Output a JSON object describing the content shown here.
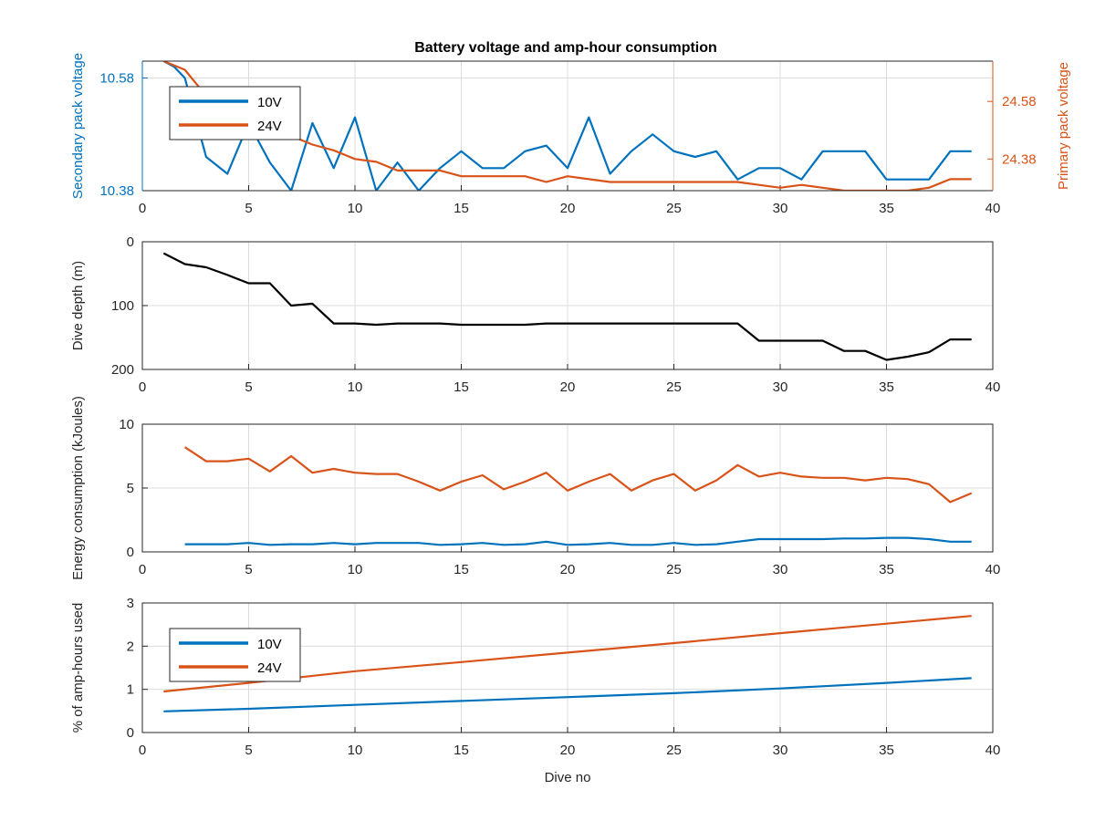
{
  "figure_title": "Battery voltage and amp-hour consumption",
  "colors": {
    "blue": "#0072BD",
    "orange": "#D95319",
    "black": "#000000",
    "axis": "#262626",
    "grid": "#dcdcdc"
  },
  "chart_data": [
    {
      "id": "voltage",
      "type": "line",
      "title": "Battery voltage and amp-hour consumption",
      "xlabel": "",
      "ylabel_left": "Secondary pack voltage",
      "ylabel_right": "Primary pack voltage",
      "xlim": [
        0,
        40
      ],
      "ylim_left": [
        10.38,
        10.61
      ],
      "ylim_right": [
        24.27,
        24.72
      ],
      "xticks": [
        0,
        5,
        10,
        15,
        20,
        25,
        30,
        35,
        40
      ],
      "xtick_labels": [
        "0",
        "5",
        "10",
        "15",
        "20",
        "25",
        "30",
        "35",
        "40"
      ],
      "yticks_left": [
        10.38,
        10.58
      ],
      "ytick_labels_left": [
        "10.38",
        "10.58"
      ],
      "yticks_right": [
        24.38,
        24.58
      ],
      "ytick_labels_right": [
        "24.38",
        "24.58"
      ],
      "grid": true,
      "legend": "top-left",
      "series": [
        {
          "name": "10V",
          "axis": "left",
          "color": "#0072BD",
          "x": [
            1,
            1.5,
            2,
            3,
            4,
            5,
            6,
            7,
            8,
            9,
            10,
            11,
            12,
            13,
            14,
            15,
            16,
            17,
            18,
            19,
            20,
            21,
            22,
            23,
            24,
            25,
            26,
            27,
            28,
            29,
            30,
            31,
            32,
            33,
            34,
            35,
            36,
            37,
            38,
            39
          ],
          "y": [
            10.61,
            10.6,
            10.58,
            10.44,
            10.41,
            10.5,
            10.43,
            10.38,
            10.5,
            10.42,
            10.51,
            10.38,
            10.43,
            10.38,
            10.42,
            10.45,
            10.42,
            10.42,
            10.45,
            10.46,
            10.42,
            10.51,
            10.41,
            10.45,
            10.48,
            10.45,
            10.44,
            10.45,
            10.4,
            10.42,
            10.42,
            10.4,
            10.45,
            10.45,
            10.45,
            10.4,
            10.4,
            10.4,
            10.45,
            10.45
          ]
        },
        {
          "name": "24V",
          "axis": "right",
          "color": "#D95319",
          "x": [
            1,
            2,
            3,
            4,
            5,
            6,
            7,
            8,
            9,
            10,
            11,
            12,
            13,
            14,
            15,
            16,
            17,
            18,
            19,
            20,
            21,
            22,
            23,
            24,
            25,
            26,
            27,
            28,
            29,
            30,
            31,
            32,
            33,
            34,
            35,
            36,
            37,
            38,
            39
          ],
          "y": [
            24.72,
            24.69,
            24.6,
            24.56,
            24.51,
            24.47,
            24.46,
            24.43,
            24.41,
            24.38,
            24.37,
            24.34,
            24.34,
            24.34,
            24.32,
            24.32,
            24.32,
            24.32,
            24.3,
            24.32,
            24.31,
            24.3,
            24.3,
            24.3,
            24.3,
            24.3,
            24.3,
            24.3,
            24.29,
            24.28,
            24.29,
            24.28,
            24.27,
            24.27,
            24.27,
            24.27,
            24.28,
            24.31,
            24.31
          ]
        }
      ]
    },
    {
      "id": "depth",
      "type": "line",
      "xlabel": "",
      "ylabel": "Dive depth (m)",
      "xlim": [
        0,
        40
      ],
      "ylim": [
        0,
        200
      ],
      "y_reversed": true,
      "xticks": [
        0,
        5,
        10,
        15,
        20,
        25,
        30,
        35,
        40
      ],
      "xtick_labels": [
        "0",
        "5",
        "10",
        "15",
        "20",
        "25",
        "30",
        "35",
        "40"
      ],
      "yticks": [
        0,
        100,
        200
      ],
      "ytick_labels": [
        "0",
        "100",
        "200"
      ],
      "grid": true,
      "series": [
        {
          "name": "",
          "color": "#000000",
          "x": [
            1,
            2,
            3,
            4,
            5,
            6,
            7,
            8,
            9,
            10,
            11,
            12,
            13,
            14,
            15,
            16,
            17,
            18,
            19,
            20,
            21,
            22,
            23,
            24,
            25,
            26,
            27,
            28,
            29,
            30,
            31,
            32,
            33,
            34,
            35,
            36,
            37,
            38,
            39
          ],
          "y": [
            18,
            35,
            40,
            52,
            65,
            65,
            100,
            97,
            128,
            128,
            130,
            128,
            128,
            128,
            130,
            130,
            130,
            130,
            128,
            128,
            128,
            128,
            128,
            128,
            128,
            128,
            128,
            128,
            155,
            155,
            155,
            155,
            171,
            171,
            185,
            180,
            173,
            153,
            153
          ]
        }
      ]
    },
    {
      "id": "energy",
      "type": "line",
      "xlabel": "",
      "ylabel": "Energy consumption (kJoules)",
      "xlim": [
        0,
        40
      ],
      "ylim": [
        0,
        10
      ],
      "xticks": [
        0,
        5,
        10,
        15,
        20,
        25,
        30,
        35,
        40
      ],
      "xtick_labels": [
        "0",
        "5",
        "10",
        "15",
        "20",
        "25",
        "30",
        "35",
        "40"
      ],
      "yticks": [
        0,
        5,
        10
      ],
      "ytick_labels": [
        "0",
        "5",
        "10"
      ],
      "grid": true,
      "series": [
        {
          "name": "10V",
          "color": "#0072BD",
          "x": [
            2,
            3,
            4,
            5,
            6,
            7,
            8,
            9,
            10,
            11,
            12,
            13,
            14,
            15,
            16,
            17,
            18,
            19,
            20,
            21,
            22,
            23,
            24,
            25,
            26,
            27,
            28,
            29,
            30,
            31,
            32,
            33,
            34,
            35,
            36,
            37,
            38,
            39
          ],
          "y": [
            0.6,
            0.6,
            0.6,
            0.7,
            0.55,
            0.6,
            0.6,
            0.7,
            0.6,
            0.7,
            0.7,
            0.7,
            0.55,
            0.6,
            0.7,
            0.55,
            0.6,
            0.8,
            0.55,
            0.6,
            0.7,
            0.55,
            0.55,
            0.7,
            0.55,
            0.6,
            0.8,
            1.0,
            1.0,
            1.0,
            1.0,
            1.05,
            1.05,
            1.1,
            1.1,
            1.0,
            0.8,
            0.8
          ]
        },
        {
          "name": "24V",
          "color": "#D95319",
          "x": [
            2,
            3,
            4,
            5,
            6,
            7,
            8,
            9,
            10,
            11,
            12,
            13,
            14,
            15,
            16,
            17,
            18,
            19,
            20,
            21,
            22,
            23,
            24,
            25,
            26,
            27,
            28,
            29,
            30,
            31,
            32,
            33,
            34,
            35,
            36,
            37,
            38,
            39
          ],
          "y": [
            8.2,
            7.1,
            7.1,
            7.3,
            6.3,
            7.5,
            6.2,
            6.5,
            6.2,
            6.1,
            6.1,
            5.5,
            4.8,
            5.5,
            6.0,
            4.9,
            5.5,
            6.2,
            4.8,
            5.5,
            6.1,
            4.8,
            5.6,
            6.1,
            4.8,
            5.6,
            6.8,
            5.9,
            6.2,
            5.9,
            5.8,
            5.8,
            5.6,
            5.8,
            5.7,
            5.3,
            3.9,
            4.6
          ]
        }
      ]
    },
    {
      "id": "amphours",
      "type": "line",
      "xlabel": "Dive no",
      "ylabel": "% of amp-hours used",
      "xlim": [
        0,
        40
      ],
      "ylim": [
        0,
        3
      ],
      "xticks": [
        0,
        5,
        10,
        15,
        20,
        25,
        30,
        35,
        40
      ],
      "xtick_labels": [
        "0",
        "5",
        "10",
        "15",
        "20",
        "25",
        "30",
        "35",
        "40"
      ],
      "yticks": [
        0,
        1,
        2,
        3
      ],
      "ytick_labels": [
        "0",
        "1",
        "2",
        "3"
      ],
      "grid": true,
      "legend": "top-left",
      "series": [
        {
          "name": "10V",
          "color": "#0072BD",
          "x": [
            1,
            5,
            10,
            15,
            20,
            25,
            30,
            35,
            39
          ],
          "y": [
            0.49,
            0.55,
            0.64,
            0.73,
            0.82,
            0.91,
            1.02,
            1.15,
            1.26
          ]
        },
        {
          "name": "24V",
          "color": "#D95319",
          "x": [
            1,
            5,
            10,
            15,
            20,
            25,
            30,
            35,
            39
          ],
          "y": [
            0.95,
            1.15,
            1.42,
            1.63,
            1.85,
            2.07,
            2.3,
            2.52,
            2.7
          ]
        }
      ]
    }
  ]
}
